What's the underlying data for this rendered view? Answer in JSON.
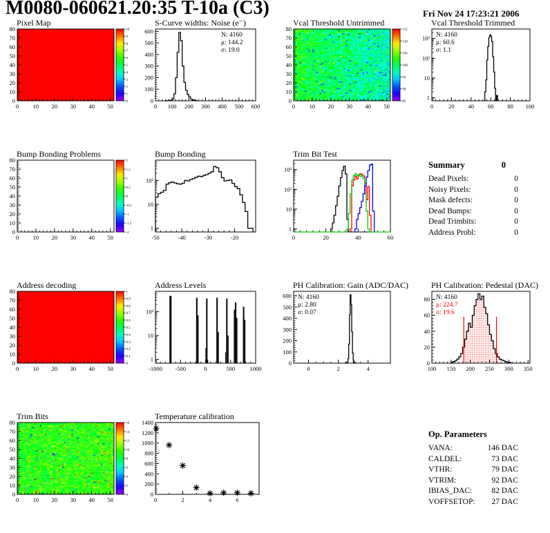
{
  "header": {
    "title": "M0080-060621.20:35 T-10a (C3)",
    "date": "Fri Nov 24 17:23:21 2006"
  },
  "chart_data": [
    {
      "id": "pixel-map",
      "type": "heatmap",
      "title": "Pixel Map",
      "xlim": [
        0,
        52
      ],
      "ylim": [
        0,
        80
      ],
      "xticks": [
        0,
        10,
        20,
        30,
        40,
        50
      ],
      "yticks": [
        0,
        10,
        20,
        30,
        40,
        50,
        60,
        70,
        80
      ],
      "pattern": "uniform",
      "value_t": 1,
      "colorbar": {
        "labels": [
          "10",
          "9",
          "8",
          "7",
          "6",
          "5",
          "4",
          "3",
          "2",
          "1",
          "0"
        ]
      }
    },
    {
      "id": "scurve-noise",
      "type": "hist",
      "title": "S-Curve widths: Noise (e⁻)",
      "xlim": [
        0,
        600
      ],
      "xticks": [
        0,
        100,
        200,
        300,
        400,
        500,
        600
      ],
      "ylim": [
        0,
        620
      ],
      "yticks": [
        0,
        100,
        200,
        300,
        400,
        500,
        600
      ],
      "stats": {
        "n": "4160",
        "mu": "144.2",
        "sigma": "19.0",
        "pos": "tr"
      },
      "series": [
        {
          "color": "#000000",
          "bins": {
            "start": 60,
            "width": 10,
            "counts": [
              1,
              2,
              3,
              5,
              15,
              60,
              200,
              420,
              590,
              520,
              300,
              160,
              90,
              55,
              35,
              15,
              8,
              4,
              2
            ]
          }
        }
      ]
    },
    {
      "id": "vcal-untrimmed",
      "type": "heatmap",
      "title": "Vcal Threshold Untrimmed",
      "xlim": [
        0,
        52
      ],
      "ylim": [
        0,
        80
      ],
      "xticks": [
        0,
        10,
        20,
        30,
        40,
        50
      ],
      "yticks": [
        0,
        10,
        20,
        30,
        40,
        50,
        60,
        70,
        80
      ],
      "pattern": "noise",
      "noise": {
        "vmin": 83,
        "vmax": 117,
        "mean": 99,
        "spread": 9,
        "grad": -5,
        "low_frac": 0.03,
        "low_delta": -9,
        "high_frac": 0.02,
        "high_delta": 7,
        "seed": 7
      },
      "colorbar": {
        "labels": [
          "115",
          "110",
          "105",
          "100",
          "95",
          "90",
          "85"
        ]
      }
    },
    {
      "id": "vcal-trimmed",
      "type": "hist",
      "title": "Vcal Threshold Trimmed",
      "xlim": [
        0,
        100
      ],
      "xticks": [
        0,
        20,
        40,
        60,
        80,
        100
      ],
      "ylog": true,
      "ylim": [
        0.7,
        3000
      ],
      "stats": {
        "n": "4160",
        "mu": "60.6",
        "sigma": "1.1",
        "pos": "tl"
      },
      "series": [
        {
          "color": "#000000",
          "bins": {
            "start": 54,
            "width": 1,
            "counts": [
              2,
              8,
              80,
              400,
              1100,
              1500,
              1300,
              700,
              120,
              20,
              3,
              0,
              1.3
            ]
          }
        }
      ]
    },
    {
      "id": "bump-problems",
      "type": "heatmap",
      "title": "Bump Bonding Problems",
      "xlim": [
        0,
        52
      ],
      "ylim": [
        0,
        80
      ],
      "xticks": [
        0,
        10,
        20,
        30,
        40,
        50
      ],
      "yticks": [
        0,
        10,
        20,
        30,
        40,
        50,
        60,
        70,
        80
      ],
      "pattern": "empty",
      "colorbar": {
        "labels": [
          "2",
          "1.5",
          "1",
          "0.5",
          "0",
          "-0.5",
          "-1",
          "-1.5",
          "-2"
        ]
      }
    },
    {
      "id": "bump-bonding",
      "type": "hist",
      "title": "Bump Bonding",
      "xlim": [
        -50,
        -12
      ],
      "xticks": [
        -50,
        -40,
        -30,
        -20
      ],
      "ylog": true,
      "ylim": [
        0.7,
        700
      ],
      "series": [
        {
          "color": "#000000",
          "bins": {
            "start": -50,
            "width": 1,
            "counts": [
              20,
              28,
              32,
              38,
              70,
              80,
              85,
              78,
              72,
              70,
              76,
              100,
              95,
              110,
              120,
              135,
              150,
              145,
              160,
              175,
              200,
              230,
              380,
              340,
              230,
              130,
              95,
              100,
              105,
              75,
              55,
              45,
              25,
              12,
              5,
              1,
              1
            ]
          }
        }
      ]
    },
    {
      "id": "trim-bit-test",
      "type": "hist",
      "title": "Trim Bit Test",
      "xlim": [
        0,
        60
      ],
      "xticks": [
        0,
        20,
        40,
        60
      ],
      "ylog": true,
      "ylim": [
        0.7,
        3000
      ],
      "series": [
        {
          "color": "#000000",
          "bins": {
            "start": 23,
            "width": 1,
            "counts": [
              1,
              2,
              5,
              15,
              45,
              150,
              400,
              900,
              1500,
              600,
              3
            ]
          }
        },
        {
          "color": "#ff0000",
          "bins": {
            "start": 35,
            "width": 1,
            "counts": [
              1,
              150,
              300,
              460,
              340,
              520,
              620,
              560,
              480,
              200,
              30,
              140,
              5
            ]
          }
        },
        {
          "color": "#00cc00",
          "full_baseline": true,
          "bins": {
            "start": 33,
            "width": 1,
            "counts": [
              1,
              6,
              60,
              300,
              500,
              620,
              480,
              560,
              450,
              520,
              350,
              60,
              8,
              1
            ]
          }
        },
        {
          "color": "#0000ff",
          "bins": {
            "start": 38,
            "width": 1,
            "counts": [
              1,
              3,
              6,
              12,
              25,
              60,
              150,
              420,
              900,
              1700,
              1900,
              8
            ]
          }
        }
      ]
    },
    {
      "id": "address-decoding",
      "type": "heatmap",
      "title": "Address decoding",
      "xlim": [
        0,
        52
      ],
      "ylim": [
        0,
        80
      ],
      "xticks": [
        0,
        10,
        20,
        30,
        40,
        50
      ],
      "yticks": [
        0,
        10,
        20,
        30,
        40,
        50,
        60,
        70,
        80
      ],
      "pattern": "uniform",
      "value_t": 1,
      "colorbar": {
        "labels": [
          "1",
          "0.9",
          "0.8",
          "0.7",
          "0.6",
          "0.5",
          "0.4",
          "0.3",
          "0.2",
          "0.1",
          "0"
        ]
      }
    },
    {
      "id": "address-levels",
      "type": "spikes",
      "title": "Address Levels",
      "xlim": [
        -1000,
        1000
      ],
      "xticks": [
        -1000,
        -500,
        0,
        500,
        1000
      ],
      "ylog": true,
      "ylim": [
        0.7,
        700
      ],
      "spikes": [
        [
          -700,
          450,
          3
        ],
        [
          -175,
          380,
          2
        ],
        [
          -150,
          70,
          1.5
        ],
        [
          5,
          3,
          1
        ],
        [
          25,
          350,
          2
        ],
        [
          45,
          1,
          1
        ],
        [
          230,
          380,
          2
        ],
        [
          255,
          14,
          1.5
        ],
        [
          400,
          2,
          1
        ],
        [
          425,
          350,
          2
        ],
        [
          450,
          10,
          1.5
        ],
        [
          575,
          120,
          1.5
        ],
        [
          600,
          240,
          2
        ],
        [
          625,
          55,
          1.5
        ],
        [
          760,
          160,
          2
        ],
        [
          785,
          45,
          1.5
        ]
      ]
    },
    {
      "id": "ph-gain",
      "type": "hist",
      "title": "PH Calibration: Gain (ADC/DAC)",
      "xlim": [
        -1,
        5.5
      ],
      "xticks": [
        0,
        2,
        4
      ],
      "xminor": 3,
      "ylim": [
        0,
        640
      ],
      "yticks": [
        0,
        100,
        200,
        300,
        400,
        500,
        600
      ],
      "stats": {
        "n": "4160",
        "mu": "2.80",
        "sigma": "0.07",
        "pos": "tl"
      },
      "series": [
        {
          "color": "#000000",
          "bins": {
            "start": 2.45,
            "width": 0.05,
            "counts": [
              1,
              2,
              4,
              10,
              40,
              170,
              430,
              610,
              520,
              280,
              90,
              25,
              8,
              3,
              1
            ]
          }
        }
      ]
    },
    {
      "id": "ph-pedestal",
      "type": "hist",
      "title": "PH Calibration: Pedestal (DAC)",
      "xlim": [
        100,
        355
      ],
      "xticks": [
        100,
        150,
        200,
        250,
        300,
        350
      ],
      "ylim": [
        0,
        90
      ],
      "yticks": [
        0,
        20,
        40,
        60,
        80
      ],
      "stats": {
        "n": "4160",
        "mu": "224.7",
        "sigma": "19.6",
        "pos": "tl",
        "stat_colors": [
          "#000000",
          "#ff0000",
          "#ff0000"
        ]
      },
      "fill": {
        "color": "#ff0000",
        "clip": [
          183,
          268
        ]
      },
      "vlines": [
        {
          "x": 183,
          "h": 58
        },
        {
          "x": 268,
          "h": 58
        }
      ],
      "series": [
        {
          "color": "#000000",
          "bins": {
            "start": 150,
            "width": 5,
            "counts": [
              1,
              2,
              3,
              5,
              8,
              12,
              20,
              30,
              40,
              50,
              45,
              60,
              72,
              80,
              87,
              80,
              84,
              70,
              62,
              48,
              36,
              28,
              18,
              12,
              8,
              5,
              4,
              3,
              2,
              1,
              1
            ]
          }
        }
      ]
    },
    {
      "id": "trim-bits",
      "type": "heatmap",
      "title": "Trim Bits",
      "xlim": [
        0,
        52
      ],
      "ylim": [
        0,
        80
      ],
      "xticks": [
        0,
        10,
        20,
        30,
        40,
        50
      ],
      "yticks": [
        0,
        10,
        20,
        30,
        40,
        50,
        60,
        70,
        80
      ],
      "pattern": "noise",
      "noise": {
        "vmin": 0,
        "vmax": 16,
        "mean": 9.3,
        "spread": 3.5,
        "grad": 0.5,
        "high_frac": 0.05,
        "high_delta": 4,
        "low_frac": 0.01,
        "low_delta": -6,
        "seed": 13
      },
      "colorbar": {
        "labels": [
          "16",
          "14",
          "12",
          "10",
          "8",
          "6",
          "4",
          "2",
          "0"
        ]
      }
    },
    {
      "id": "temperature",
      "type": "scatter",
      "title": "Temperature calibration",
      "xlim": [
        0,
        7.6
      ],
      "xticks": [
        0,
        2,
        4,
        6
      ],
      "xminor": 1,
      "ylim": [
        0,
        1400
      ],
      "yticks": [
        0,
        200,
        400,
        600,
        800,
        1000,
        1200,
        1400
      ],
      "points": [
        [
          0.05,
          1280
        ],
        [
          1,
          960
        ],
        [
          2,
          560
        ],
        [
          3,
          130
        ],
        [
          4,
          20
        ],
        [
          5,
          30
        ],
        [
          6,
          30
        ],
        [
          7,
          20
        ]
      ]
    }
  ],
  "summary": {
    "title": "Summary",
    "value": "0",
    "rows": [
      {
        "label": "Dead Pixels:",
        "value": "0"
      },
      {
        "label": "Noisy Pixels:",
        "value": "0"
      },
      {
        "label": "Mask defects:",
        "value": "0"
      },
      {
        "label": "Dead Bumps:",
        "value": "0"
      },
      {
        "label": "Dead Trimbits:",
        "value": "0"
      },
      {
        "label": "Address Probl:",
        "value": "0"
      }
    ]
  },
  "op_params": {
    "title": "Op. Parameters",
    "rows": [
      {
        "label": "VANA:",
        "value": "146 DAC"
      },
      {
        "label": "CALDEL:",
        "value": "73 DAC"
      },
      {
        "label": "VTHR:",
        "value": "79 DAC"
      },
      {
        "label": "VTRIM:",
        "value": "92 DAC"
      },
      {
        "label": "IBIAS_DAC:",
        "value": "82 DAC"
      },
      {
        "label": "VOFFSETOP:",
        "value": "27 DAC"
      }
    ]
  }
}
